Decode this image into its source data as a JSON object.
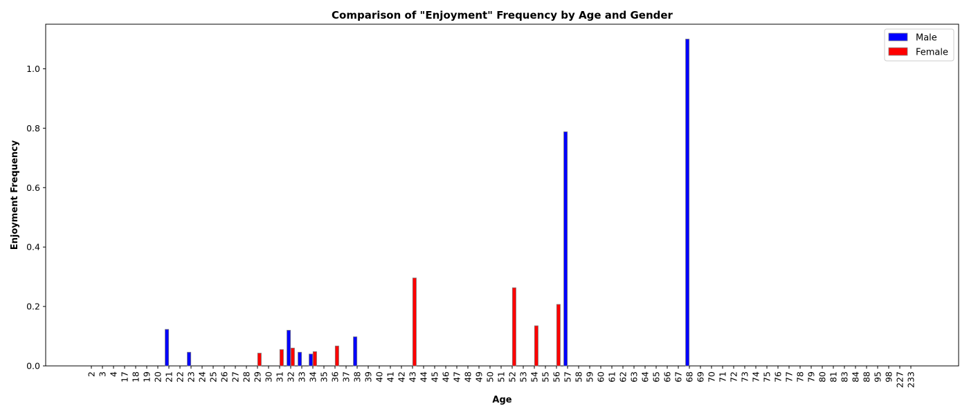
{
  "chart_data": {
    "type": "bar",
    "title": "Comparison of \"Enjoyment\" Frequency by Age and Gender",
    "xlabel": "Age",
    "ylabel": "Enjoyment Frequency",
    "ylim": [
      0,
      1.15
    ],
    "yticks": [
      0.0,
      0.2,
      0.4,
      0.6,
      0.8,
      1.0
    ],
    "ytick_labels": [
      "0.0",
      "0.2",
      "0.4",
      "0.6",
      "0.8",
      "1.0"
    ],
    "grid": false,
    "legend_position": "top-right",
    "categories": [
      "2",
      "3",
      "4",
      "17",
      "18",
      "19",
      "20",
      "21",
      "22",
      "23",
      "24",
      "25",
      "26",
      "27",
      "28",
      "29",
      "30",
      "31",
      "32",
      "33",
      "34",
      "35",
      "36",
      "37",
      "38",
      "39",
      "40",
      "41",
      "42",
      "43",
      "44",
      "45",
      "46",
      "47",
      "48",
      "49",
      "50",
      "51",
      "52",
      "53",
      "54",
      "55",
      "56",
      "57",
      "58",
      "59",
      "60",
      "61",
      "62",
      "63",
      "64",
      "65",
      "66",
      "67",
      "68",
      "69",
      "70",
      "71",
      "72",
      "73",
      "74",
      "75",
      "76",
      "77",
      "78",
      "79",
      "80",
      "81",
      "83",
      "84",
      "88",
      "95",
      "98",
      "227",
      "233"
    ],
    "series": [
      {
        "name": "Male",
        "color": "#0000ff",
        "values": [
          0,
          0,
          0,
          0,
          0,
          0,
          0,
          0.123,
          0,
          0.046,
          0,
          0,
          0,
          0,
          0,
          0,
          0,
          0,
          0.12,
          0.046,
          0.04,
          0,
          0,
          0,
          0.098,
          0,
          0,
          0,
          0,
          0,
          0,
          0,
          0,
          0,
          0,
          0,
          0,
          0,
          0,
          0,
          0,
          0,
          0,
          0.788,
          0,
          0,
          0,
          0,
          0,
          0,
          0,
          0,
          0,
          0,
          1.1,
          0,
          0,
          0,
          0,
          0,
          0,
          0,
          0,
          0,
          0,
          0,
          0,
          0,
          0,
          0,
          0,
          0,
          0,
          0,
          0
        ]
      },
      {
        "name": "Female",
        "color": "#ff0000",
        "values": [
          0,
          0,
          0,
          0,
          0,
          0,
          0,
          0,
          0,
          0,
          0,
          0,
          0,
          0,
          0,
          0.043,
          0,
          0.055,
          0.06,
          0,
          0.048,
          0,
          0.067,
          0,
          0,
          0,
          0,
          0,
          0,
          0.296,
          0,
          0,
          0,
          0,
          0,
          0,
          0,
          0,
          0.263,
          0,
          0.135,
          0,
          0.207,
          0,
          0,
          0,
          0,
          0,
          0,
          0,
          0,
          0,
          0,
          0,
          0,
          0,
          0,
          0,
          0,
          0,
          0,
          0,
          0,
          0,
          0,
          0,
          0,
          0,
          0,
          0,
          0,
          0,
          0,
          0,
          0
        ]
      }
    ]
  }
}
